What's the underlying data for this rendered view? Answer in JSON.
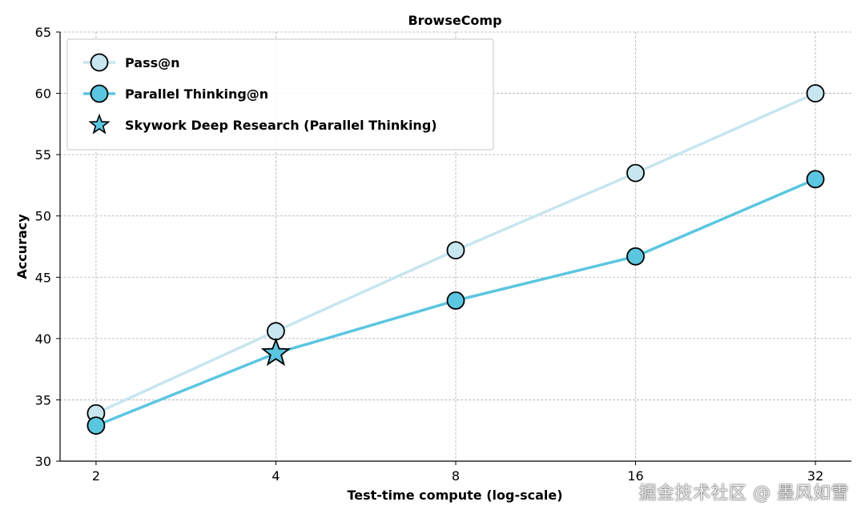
{
  "chart_data": {
    "type": "line",
    "title": "BrowseComp",
    "xlabel": "Test-time compute (log-scale)",
    "ylabel": "Accuracy",
    "x_scale": "log2",
    "x": [
      2,
      4,
      8,
      16,
      32
    ],
    "x_tick_labels": [
      "2",
      "4",
      "8",
      "16",
      "32"
    ],
    "ylim": [
      30,
      65
    ],
    "y_ticks": [
      30,
      35,
      40,
      45,
      50,
      55,
      60,
      65
    ],
    "y_tick_labels": [
      "30",
      "35",
      "40",
      "45",
      "50",
      "55",
      "60",
      "65"
    ],
    "grid": true,
    "legend_position": "top-left",
    "series": [
      {
        "name": "Pass@n",
        "color": "#c7e6ef",
        "marker": "circle",
        "values": [
          33.9,
          40.6,
          47.2,
          53.5,
          60.0
        ]
      },
      {
        "name": "Parallel Thinking@n",
        "color": "#5bc6e0",
        "marker": "circle",
        "values": [
          32.9,
          38.8,
          43.1,
          46.7,
          53.0
        ]
      }
    ],
    "highlight": {
      "name": "Skywork Deep Research (Parallel Thinking)",
      "color": "#5bc6e0",
      "marker": "star",
      "x": 4,
      "y": 38.8
    }
  },
  "watermark": "掘金技术社区 @ 墨风如雪"
}
